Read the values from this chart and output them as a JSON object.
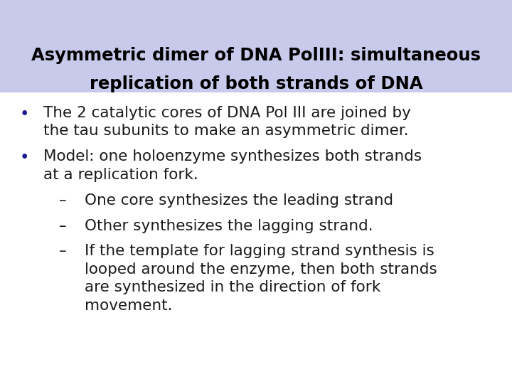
{
  "title_line1": "Asymmetric dimer of DNA PolIII: simultaneous",
  "title_line2": "replication of both strands of DNA",
  "title_bg_color": "#c8caec",
  "title_text_color": "#000000",
  "body_bg_color": "#ffffff",
  "bullet_color": "#1a1a8c",
  "text_color": "#1a1a1a",
  "title_fontsize": 17.5,
  "body_fontsize": 15.5,
  "bullet_items": [
    {
      "type": "bullet",
      "text": "The 2 catalytic cores of DNA Pol III are joined by\nthe tau subunits to make an asymmetric dimer."
    },
    {
      "type": "bullet",
      "text": "Model: one holoenzyme synthesizes both strands\nat a replication fork."
    },
    {
      "type": "dash",
      "text": "One core synthesizes the leading strand"
    },
    {
      "type": "dash",
      "text": "Other synthesizes the lagging strand."
    },
    {
      "type": "dash",
      "text": "If the template for lagging strand synthesis is\nlooped around the enzyme, then both strands\nare synthesized in the direction of fork\nmovement."
    }
  ]
}
